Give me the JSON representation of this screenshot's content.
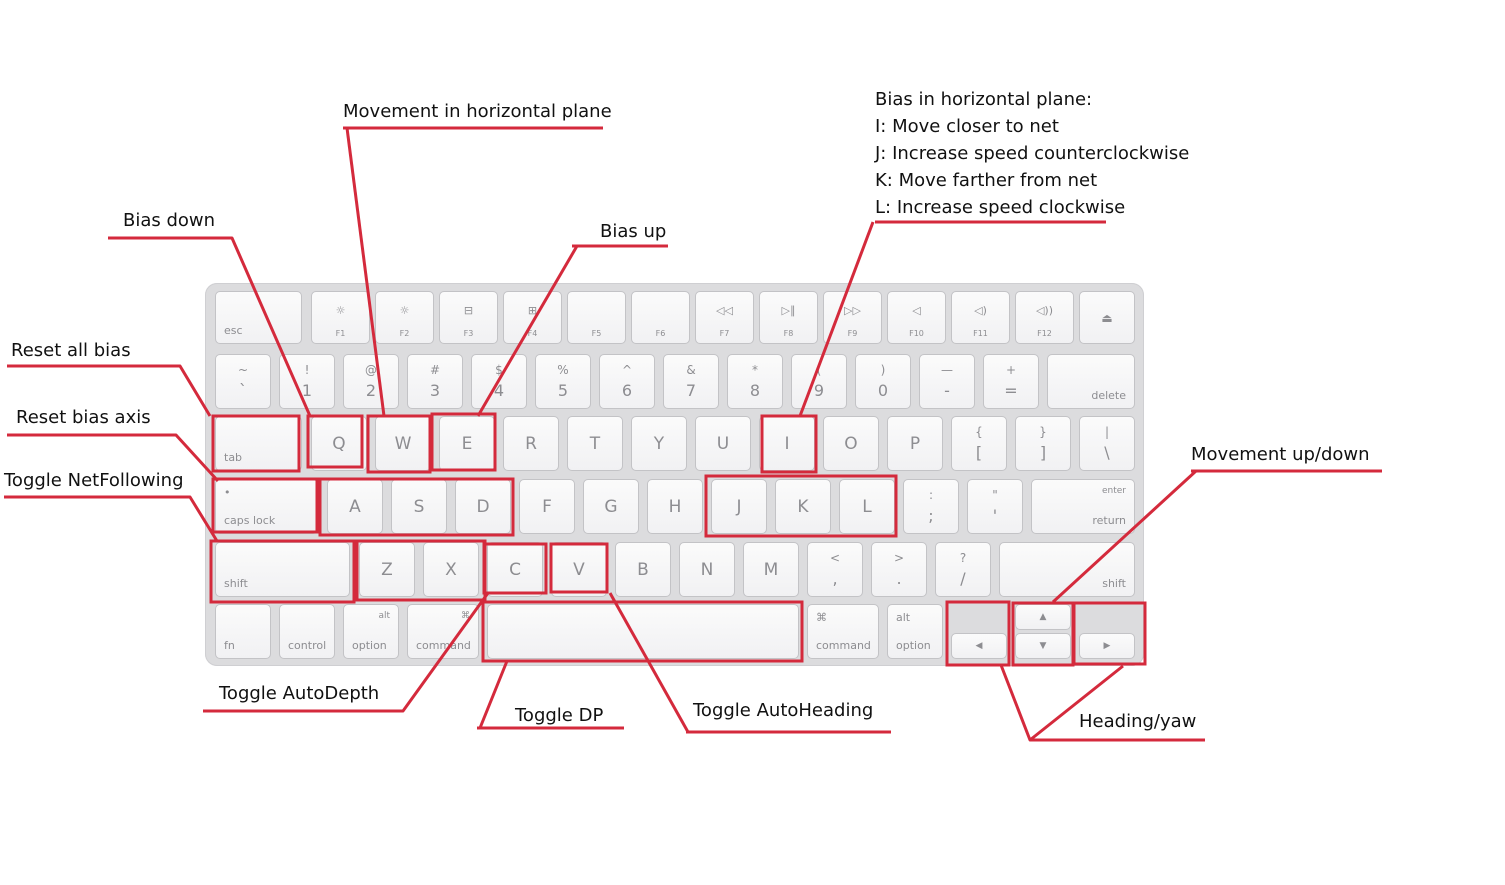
{
  "accent_color": "#d42a3c",
  "keyboard": {
    "row0": [
      {
        "id": "esc",
        "bl": "esc"
      },
      {
        "id": "f1",
        "ico": "☼",
        "fn": "F1"
      },
      {
        "id": "f2",
        "ico": "☼",
        "fn": "F2"
      },
      {
        "id": "f3",
        "ico": "⊟",
        "fn": "F3"
      },
      {
        "id": "f4",
        "ico": "⊞",
        "fn": "F4"
      },
      {
        "id": "f5",
        "fn": "F5"
      },
      {
        "id": "f6",
        "fn": "F6"
      },
      {
        "id": "f7",
        "ico": "◁◁",
        "fn": "F7"
      },
      {
        "id": "f8",
        "ico": "▷∥",
        "fn": "F8"
      },
      {
        "id": "f9",
        "ico": "▷▷",
        "fn": "F9"
      },
      {
        "id": "f10",
        "ico": "◁",
        "fn": "F10"
      },
      {
        "id": "f11",
        "ico": "◁)",
        "fn": "F11"
      },
      {
        "id": "f12",
        "ico": "◁))",
        "fn": "F12"
      },
      {
        "id": "eject",
        "eject": "⏏"
      }
    ],
    "row1": [
      {
        "id": "tilde",
        "top": "~",
        "bot": "`"
      },
      {
        "id": "k1",
        "top": "!",
        "bot": "1"
      },
      {
        "id": "k2",
        "top": "@",
        "bot": "2"
      },
      {
        "id": "k3",
        "top": "#",
        "bot": "3"
      },
      {
        "id": "k4",
        "top": "$",
        "bot": "4"
      },
      {
        "id": "k5",
        "top": "%",
        "bot": "5"
      },
      {
        "id": "k6",
        "top": "^",
        "bot": "6"
      },
      {
        "id": "k7",
        "top": "&",
        "bot": "7"
      },
      {
        "id": "k8",
        "top": "*",
        "bot": "8"
      },
      {
        "id": "k9",
        "top": "(",
        "bot": "9"
      },
      {
        "id": "k0",
        "top": ")",
        "bot": "0"
      },
      {
        "id": "minus",
        "top": "—",
        "bot": "-"
      },
      {
        "id": "equal",
        "top": "+",
        "bot": "="
      },
      {
        "id": "delete",
        "br": "delete"
      }
    ],
    "row2": [
      {
        "id": "tab",
        "bl": "tab"
      },
      {
        "id": "q",
        "main": "Q"
      },
      {
        "id": "w",
        "main": "W"
      },
      {
        "id": "e",
        "main": "E"
      },
      {
        "id": "r",
        "main": "R"
      },
      {
        "id": "t",
        "main": "T"
      },
      {
        "id": "y",
        "main": "Y"
      },
      {
        "id": "u",
        "main": "U"
      },
      {
        "id": "i",
        "main": "I"
      },
      {
        "id": "o",
        "main": "O"
      },
      {
        "id": "p",
        "main": "P"
      },
      {
        "id": "lbracket",
        "top": "{",
        "bot": "["
      },
      {
        "id": "rbracket",
        "top": "}",
        "bot": "]"
      },
      {
        "id": "backslash",
        "top": "|",
        "bot": "\\"
      }
    ],
    "row3": [
      {
        "id": "capslock",
        "bl": "caps lock",
        "tl": "•"
      },
      {
        "id": "a",
        "main": "A"
      },
      {
        "id": "s",
        "main": "S"
      },
      {
        "id": "d",
        "main": "D"
      },
      {
        "id": "f",
        "main": "F"
      },
      {
        "id": "g",
        "main": "G"
      },
      {
        "id": "h",
        "main": "H"
      },
      {
        "id": "j",
        "main": "J"
      },
      {
        "id": "k",
        "main": "K"
      },
      {
        "id": "l",
        "main": "L"
      },
      {
        "id": "semicolon",
        "top": ":",
        "bot": ";"
      },
      {
        "id": "quote",
        "top": "\"",
        "bot": "'"
      },
      {
        "id": "return",
        "tr": "enter",
        "br": "return"
      }
    ],
    "row4": [
      {
        "id": "lshift",
        "bl": "shift"
      },
      {
        "id": "z",
        "main": "Z"
      },
      {
        "id": "x",
        "main": "X"
      },
      {
        "id": "c",
        "main": "C"
      },
      {
        "id": "v",
        "main": "V"
      },
      {
        "id": "b",
        "main": "B"
      },
      {
        "id": "n",
        "main": "N"
      },
      {
        "id": "m",
        "main": "M"
      },
      {
        "id": "comma",
        "top": "<",
        "bot": ","
      },
      {
        "id": "period",
        "top": ">",
        "bot": "."
      },
      {
        "id": "slash",
        "top": "?",
        "bot": "/"
      },
      {
        "id": "rshift",
        "br": "shift"
      }
    ],
    "row5": [
      {
        "id": "fn",
        "bl": "fn"
      },
      {
        "id": "control",
        "ctr_bottom": "control"
      },
      {
        "id": "loption",
        "tr": "alt",
        "ctr_bottom": "option"
      },
      {
        "id": "lcommand",
        "tr": "⌘",
        "ctr_bottom": "command"
      },
      {
        "id": "space"
      },
      {
        "id": "rcommand",
        "tl": "⌘",
        "ctr_bottom": "command"
      },
      {
        "id": "roption",
        "tl": "alt",
        "ctr_bottom": "option"
      },
      {
        "id": "left",
        "arr": "◀"
      },
      {
        "id": "up",
        "arr": "▲"
      },
      {
        "id": "down",
        "arr": "▼"
      },
      {
        "id": "right",
        "arr": "▶"
      }
    ]
  },
  "labels": {
    "movement_horizontal": "Movement in horizontal plane",
    "bias_down": "Bias down",
    "bias_up": "Bias up",
    "reset_all_bias": "Reset all bias",
    "reset_bias_axis": "Reset bias axis",
    "toggle_netfollowing": "Toggle NetFollowing",
    "bias_horizontal_title": "Bias in horizontal plane:",
    "bias_i": "I: Move closer to net",
    "bias_j": "J: Increase speed counterclockwise",
    "bias_k": "K: Move farther from net",
    "bias_l": "L: Increase speed clockwise",
    "movement_updown": "Movement up/down",
    "toggle_autodepth": "Toggle AutoDepth",
    "toggle_dp": "Toggle DP",
    "toggle_autoheading": "Toggle AutoHeading",
    "heading_yaw": "Heading/yaw"
  }
}
